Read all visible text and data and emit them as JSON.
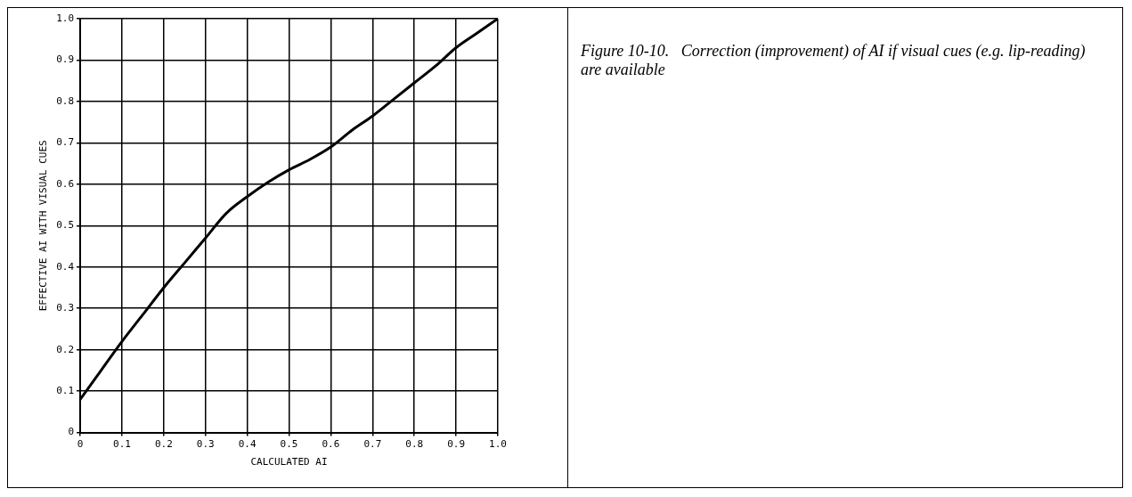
{
  "chart_data": {
    "type": "line",
    "title": "Figure 10-10.   Correction (improvement) of AI if visual cues (e.g. lip-reading) are available",
    "xlabel": "CALCULATED AI",
    "ylabel": "EFFECTIVE AI WITH VISUAL CUES",
    "x": [
      0,
      0.05,
      0.1,
      0.15,
      0.2,
      0.25,
      0.3,
      0.35,
      0.4,
      0.45,
      0.5,
      0.55,
      0.6,
      0.65,
      0.7,
      0.75,
      0.8,
      0.85,
      0.9,
      0.95,
      1
    ],
    "series": [
      {
        "color": "#000000",
        "values": [
          0.08,
          0.15,
          0.22,
          0.285,
          0.35,
          0.41,
          0.47,
          0.53,
          0.57,
          0.605,
          0.635,
          0.66,
          0.69,
          0.73,
          0.765,
          0.805,
          0.845,
          0.885,
          0.93,
          0.965,
          1.0
        ]
      }
    ],
    "xlim": [
      0,
      1
    ],
    "ylim": [
      0,
      1
    ],
    "xticks": [
      0,
      0.1,
      0.2,
      0.3,
      0.4,
      0.5,
      0.6,
      0.7,
      0.8,
      0.9,
      {
        "value": 1,
        "label": "1.0"
      }
    ],
    "yticks": [
      0,
      0.1,
      0.2,
      0.3,
      0.4,
      0.5,
      0.6,
      0.7,
      0.8,
      0.9,
      {
        "value": 1,
        "label": "1.0"
      }
    ],
    "grid": true,
    "marker": "none",
    "line_style": "solid",
    "legend": false
  }
}
